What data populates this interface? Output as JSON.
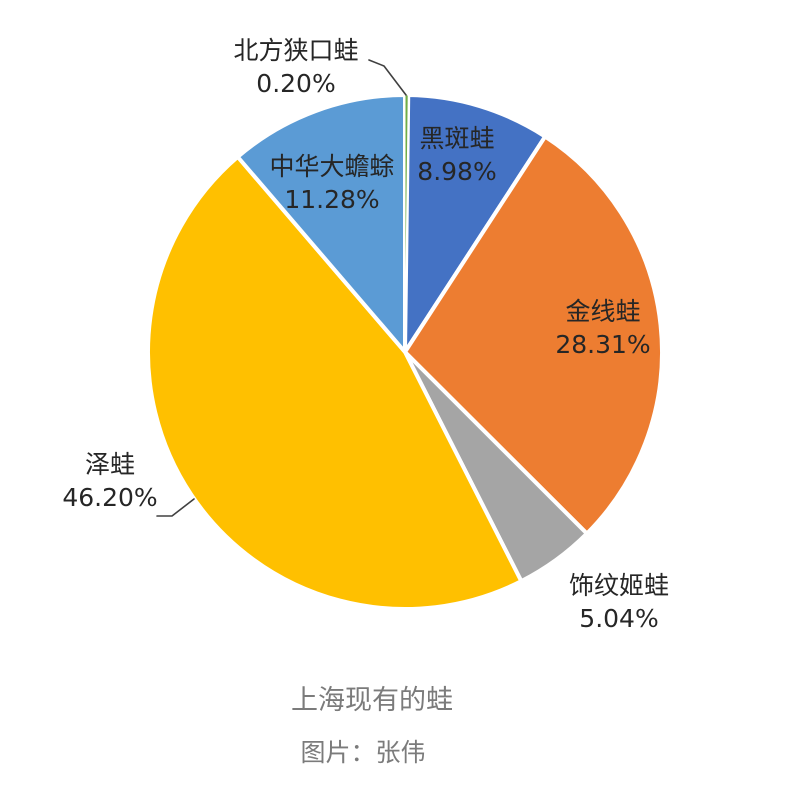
{
  "chart_data": {
    "type": "pie",
    "title": "上海现有的蛙",
    "caption": "图片：张伟",
    "background_color": "#FFFFFF",
    "title_color": "#7B7B7B",
    "label_color": "#262626",
    "leader_line_color": "#404040",
    "start_angle_deg": 0,
    "direction": "clockwise",
    "legend": "none",
    "slices": [
      {
        "name": "北方狭口蛙",
        "value": 0.2,
        "pct_label": "0.20%",
        "color": "#70AD47",
        "label_position": "outside-top-left-with-leader"
      },
      {
        "name": "黑斑蛙",
        "value": 8.98,
        "pct_label": "8.98%",
        "color": "#4472C4",
        "label_position": "inside"
      },
      {
        "name": "金线蛙",
        "value": 28.31,
        "pct_label": "28.31%",
        "color": "#ED7D31",
        "label_position": "inside"
      },
      {
        "name": "饰纹姬蛙",
        "value": 5.04,
        "pct_label": "5.04%",
        "color": "#A5A5A5",
        "label_position": "outside-bottom-right"
      },
      {
        "name": "泽蛙",
        "value": 46.2,
        "pct_label": "46.20%",
        "color": "#FFC000",
        "label_position": "outside-left-with-leader"
      },
      {
        "name": "中华大蟾蜍",
        "value": 11.28,
        "pct_label": "11.28%",
        "color": "#5B9BD5",
        "label_position": "inside"
      }
    ]
  }
}
